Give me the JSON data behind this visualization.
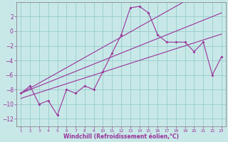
{
  "xlabel": "Windchill (Refroidissement éolien,°C)",
  "x_values": [
    1,
    2,
    3,
    4,
    5,
    6,
    7,
    8,
    9,
    10,
    11,
    12,
    13,
    14,
    15,
    16,
    17,
    18,
    19,
    20,
    21,
    22,
    23
  ],
  "line1_y": [
    -8.5,
    -7.5,
    -10.0,
    -9.5,
    -11.5,
    -8.0,
    -8.5,
    -7.5,
    -8.0,
    -5.5,
    -3.0,
    -0.5,
    3.2,
    3.4,
    2.5,
    -0.5,
    -1.5,
    -1.5,
    -1.5,
    -2.8,
    -1.5,
    -6.0,
    -3.5
  ],
  "line2_y": [
    -8.5,
    -7.8,
    -7.1,
    -6.4,
    -5.7,
    -5.0,
    -4.3,
    -3.6,
    -2.9,
    -2.2,
    -1.5,
    -0.8,
    -0.1,
    0.6,
    1.3,
    2.0,
    2.7,
    3.4,
    4.1,
    4.8,
    5.5,
    6.2,
    6.9
  ],
  "line3_y": [
    -8.5,
    -8.0,
    -7.5,
    -7.0,
    -6.5,
    -6.0,
    -5.5,
    -5.0,
    -4.5,
    -4.0,
    -3.5,
    -3.0,
    -2.5,
    -2.0,
    -1.5,
    -1.0,
    -0.5,
    0.0,
    0.5,
    1.0,
    1.5,
    2.0,
    2.5
  ],
  "line4_y": [
    -9.2,
    -8.8,
    -8.4,
    -8.0,
    -7.6,
    -7.2,
    -6.8,
    -6.4,
    -6.0,
    -5.6,
    -5.2,
    -4.8,
    -4.4,
    -4.0,
    -3.6,
    -3.2,
    -2.8,
    -2.4,
    -2.0,
    -1.6,
    -1.2,
    -0.8,
    -0.4
  ],
  "line_color": "#993399",
  "bg_color": "#c8e8e8",
  "grid_color": "#99cccc",
  "xlim": [
    0.5,
    23.5
  ],
  "ylim": [
    -13,
    4
  ],
  "yticks": [
    2,
    0,
    -2,
    -4,
    -6,
    -8,
    -10,
    -12
  ],
  "xticks": [
    1,
    2,
    3,
    4,
    5,
    6,
    7,
    8,
    9,
    10,
    11,
    12,
    13,
    14,
    15,
    16,
    17,
    18,
    19,
    20,
    21,
    22,
    23
  ]
}
